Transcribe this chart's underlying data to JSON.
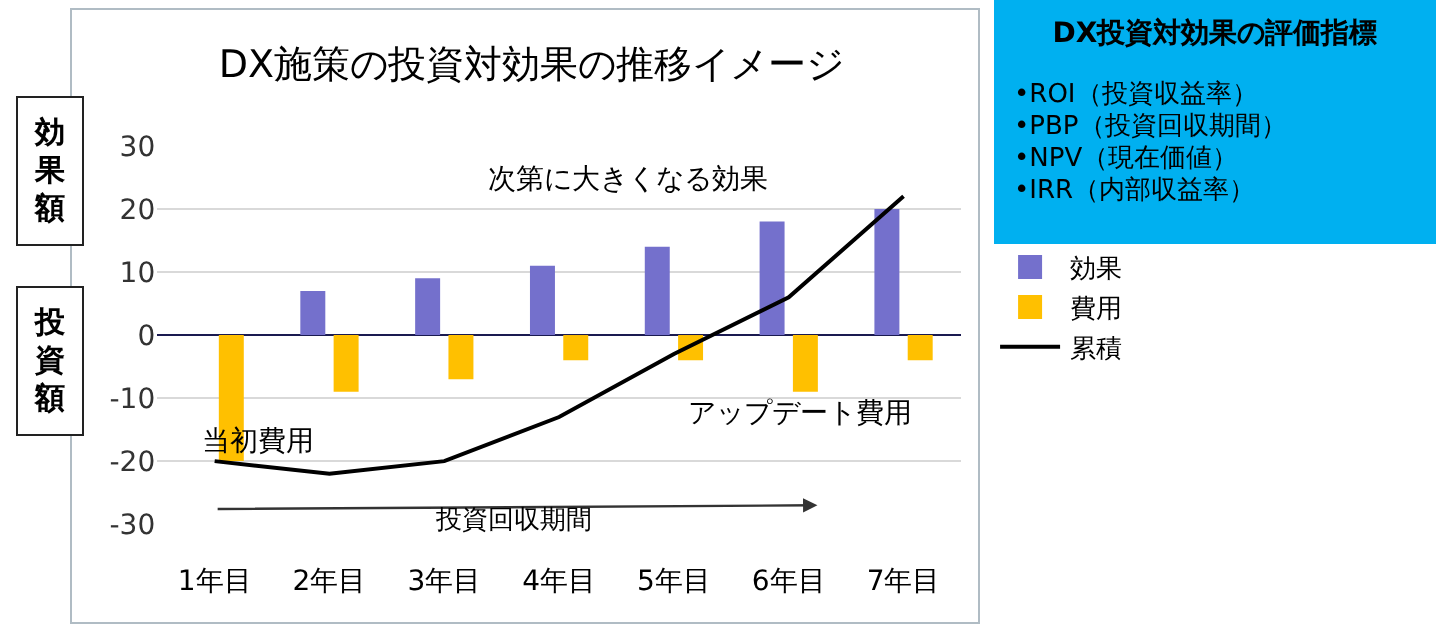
{
  "chart_data": [
    {
      "type": "bar",
      "title": "DX施策の投資対効果の推移イメージ",
      "categories": [
        "1年目",
        "2年目",
        "3年目",
        "4年目",
        "5年目",
        "6年目",
        "7年目"
      ],
      "series": [
        {
          "name": "効果",
          "color": "#7470cc",
          "values": [
            null,
            7,
            9,
            11,
            14,
            18,
            20
          ]
        },
        {
          "name": "費用",
          "color": "#ffc000",
          "values": [
            -20,
            -9,
            -7,
            -4,
            -4,
            -9,
            -4
          ]
        },
        {
          "name": "累積",
          "type": "line",
          "color": "#000000",
          "values": [
            -20,
            -22,
            -20,
            -13,
            -3,
            6,
            22
          ]
        }
      ],
      "ylim": [
        -30,
        30
      ],
      "yticks": [
        -30,
        -20,
        -10,
        0,
        10,
        20,
        30
      ],
      "grid": "y",
      "legend": "right",
      "annotations": [
        "効果額",
        "投資額",
        "次第に大きくなる効果",
        "投資回収期間",
        "アップデート費用",
        {
          "text": "当初費用",
          "x": "1年目",
          "y": -17
        }
      ]
    },
    {
      "type": "other",
      "title": "DX投資対効果の評価指標",
      "annotations": [
        "•ROI（投資収益率）",
        "•PBP（投資回収期間）",
        "•NPV（現在価値）",
        "•IRR（内部収益率）"
      ]
    }
  ]
}
